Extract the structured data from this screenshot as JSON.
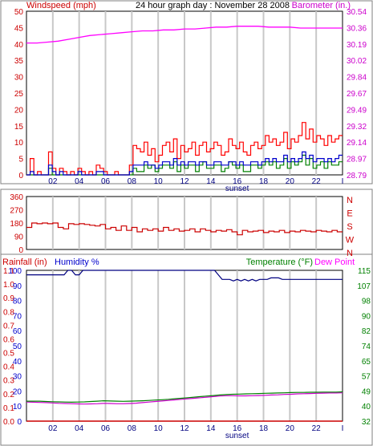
{
  "chart_data": [
    {
      "type": "line",
      "title": "24 hour graph day : November 28 2008",
      "ylabel_left": "Windspeed (mph)",
      "ylabel_right": "Barometer (in.)",
      "ylim_left": [
        0,
        50
      ],
      "ylim_right": [
        28.79,
        30.54
      ],
      "left_ticks": [
        "0",
        "5",
        "10",
        "15",
        "20",
        "25",
        "30",
        "35",
        "40",
        "45",
        "50"
      ],
      "right_ticks": [
        "28.79",
        "28.97",
        "29.14",
        "29.32",
        "29.49",
        "29.67",
        "29.84",
        "30.02",
        "30.19",
        "30.36",
        "30.54"
      ],
      "x_ticks": [
        "02",
        "04",
        "06",
        "08",
        "10",
        "12",
        "14",
        "16",
        "18",
        "20",
        "22",
        "I"
      ],
      "x_note": "sunset",
      "x_note_at": "16",
      "colors": {
        "gust": "#ff0000",
        "avg": "#0000cc",
        "wind": "#008000",
        "baro": "#ff00ff"
      },
      "gust_mph": [
        0,
        5,
        0,
        1,
        0,
        0,
        7,
        2,
        0,
        2,
        1,
        0,
        1,
        0,
        2,
        1,
        0,
        1,
        0,
        3,
        2,
        1,
        0,
        0,
        1,
        0,
        0,
        0,
        3,
        9,
        8,
        7,
        10,
        6,
        8,
        4,
        6,
        9,
        10,
        7,
        11,
        5,
        9,
        7,
        8,
        10,
        6,
        9,
        10,
        7,
        8,
        10,
        9,
        6,
        7,
        11,
        9,
        8,
        10,
        7,
        6,
        9,
        10,
        8,
        9,
        12,
        10,
        11,
        9,
        10,
        13,
        8,
        11,
        10,
        12,
        16,
        11,
        14,
        10,
        12,
        11,
        9,
        12,
        10,
        11,
        12
      ],
      "avg_mph": [
        0,
        1,
        0,
        0,
        0,
        0,
        3,
        1,
        0,
        1,
        0,
        0,
        0,
        0,
        1,
        0,
        0,
        0,
        0,
        1,
        1,
        0,
        0,
        0,
        0,
        0,
        0,
        0,
        1,
        3,
        3,
        3,
        4,
        3,
        3,
        2,
        3,
        4,
        4,
        3,
        5,
        3,
        4,
        3,
        4,
        4,
        3,
        4,
        4,
        3,
        3,
        4,
        4,
        3,
        3,
        4,
        4,
        3,
        4,
        3,
        3,
        4,
        4,
        3,
        4,
        5,
        4,
        5,
        4,
        4,
        6,
        4,
        5,
        4,
        5,
        7,
        5,
        6,
        4,
        5,
        5,
        4,
        5,
        4,
        5,
        6
      ],
      "wind_mph": [
        0,
        0,
        0,
        0,
        0,
        0,
        2,
        0,
        0,
        0,
        0,
        0,
        0,
        0,
        0,
        0,
        0,
        0,
        0,
        0,
        0,
        0,
        0,
        0,
        0,
        0,
        0,
        0,
        0,
        2,
        1,
        1,
        3,
        2,
        3,
        1,
        2,
        3,
        3,
        2,
        4,
        1,
        3,
        2,
        3,
        3,
        1,
        3,
        4,
        2,
        2,
        3,
        3,
        1,
        2,
        4,
        3,
        2,
        3,
        1,
        1,
        3,
        3,
        2,
        3,
        4,
        3,
        4,
        2,
        3,
        5,
        2,
        4,
        3,
        4,
        6,
        3,
        5,
        2,
        3,
        4,
        2,
        4,
        3,
        3,
        4
      ],
      "baro_in": [
        30.2,
        30.2,
        30.21,
        30.22,
        30.24,
        30.26,
        30.28,
        30.29,
        30.3,
        30.31,
        30.32,
        30.33,
        30.33,
        30.34,
        30.34,
        30.35,
        30.35,
        30.36,
        30.37,
        30.37,
        30.38,
        30.38,
        30.38,
        30.37,
        30.37,
        30.37,
        30.36,
        30.36,
        30.36,
        30.36,
        30.36
      ]
    },
    {
      "type": "line",
      "ylabel_right": "N W S E N",
      "ylim": [
        0,
        360
      ],
      "left_ticks": [
        "0",
        "90",
        "180",
        "270",
        "360"
      ],
      "right_labels": [
        "N",
        "W",
        "S",
        "E",
        "N"
      ],
      "colors": {
        "dir": "#cc0000"
      },
      "dir_deg": [
        150,
        180,
        175,
        180,
        175,
        180,
        150,
        140,
        175,
        170,
        175,
        170,
        165,
        160,
        170,
        140,
        150,
        130,
        160,
        130,
        150,
        120,
        140,
        130,
        140,
        125,
        150,
        130,
        140,
        125,
        130,
        140,
        120,
        140,
        130,
        120,
        130,
        125,
        135,
        120,
        100,
        130,
        120,
        125,
        130,
        115,
        125,
        120,
        130,
        115,
        125,
        120,
        130,
        125,
        120,
        130,
        125,
        120,
        130,
        120
      ]
    },
    {
      "type": "line",
      "ylabel_left": "Rainfall (in)",
      "ylabel_left2": "Humidity %",
      "ylabel_right": "Temperature (°F)",
      "ylabel_right2": "Dew Point",
      "ylim_rain": [
        0,
        1.1
      ],
      "ylim_humidity": [
        0,
        100
      ],
      "ylim_temp": [
        32,
        115
      ],
      "rain_ticks": [
        "0.0",
        "0.1",
        "0.2",
        "0.3",
        "0.4",
        "0.5",
        "0.6",
        "0.7",
        "0.8",
        "0.9",
        "1.0",
        "1.1"
      ],
      "humidity_ticks": [
        "0",
        "10",
        "20",
        "30",
        "40",
        "50",
        "60",
        "70",
        "80",
        "90",
        "100"
      ],
      "temp_ticks": [
        "32",
        "40",
        "49",
        "57",
        "65",
        "74",
        "82",
        "90",
        "98",
        "107",
        "115"
      ],
      "x_ticks": [
        "02",
        "04",
        "06",
        "08",
        "10",
        "12",
        "14",
        "16",
        "18",
        "20",
        "22",
        "I"
      ],
      "x_note": "sunset",
      "x_note_at": "16",
      "colors": {
        "rain": "#cc0000",
        "humidity": "#000080",
        "temp": "#008000",
        "dew": "#cc00cc",
        "rain_label": "#cc0000",
        "humidity_label": "#0000cc",
        "temp_label": "#008000",
        "dew_label": "#ff00ff"
      },
      "humidity_pct": [
        97,
        97,
        97,
        97,
        97,
        97,
        97,
        97,
        97,
        97,
        97,
        100,
        100,
        97,
        97,
        100,
        100,
        100,
        100,
        100,
        100,
        100,
        100,
        100,
        100,
        100,
        100,
        100,
        100,
        100,
        100,
        100,
        100,
        100,
        100,
        100,
        100,
        100,
        100,
        100,
        100,
        100,
        100,
        100,
        100,
        100,
        100,
        100,
        100,
        100,
        100,
        97,
        94,
        94,
        94,
        93,
        94,
        93,
        94,
        93,
        94,
        93,
        94,
        94,
        94,
        95,
        95,
        95,
        94,
        94,
        94,
        94,
        94,
        94,
        94,
        94,
        94,
        94,
        94,
        94,
        94,
        94,
        94,
        94,
        94
      ],
      "temp_f": [
        43,
        43,
        43,
        42.8,
        42.7,
        42.6,
        42.5,
        42.4,
        42.5,
        42.6,
        42.8,
        43,
        43.2,
        43.1,
        43,
        42.9,
        43,
        43.1,
        43.2,
        43.4,
        43.6,
        43.8,
        44,
        44.3,
        44.6,
        44.9,
        45.2,
        45.5,
        45.8,
        46.1,
        46.4,
        46.6,
        46.8,
        46.9,
        47,
        47.1,
        47.2,
        47.3,
        47.4,
        47.5,
        47.6,
        47.7,
        47.8,
        47.8,
        47.9,
        47.9,
        48,
        48,
        48,
        48.1
      ],
      "dew_f": [
        42.5,
        42.4,
        42.3,
        42.2,
        42,
        41.8,
        41.7,
        41.6,
        41.5,
        41.4,
        41.5,
        41.6,
        41.8,
        41.7,
        41.6,
        41.6,
        41.7,
        41.9,
        42.2,
        42.5,
        42.8,
        43.1,
        43.4,
        43.7,
        44,
        44.3,
        44.6,
        44.9,
        45.2,
        45.5,
        45.8,
        46,
        46,
        45.9,
        45.9,
        46,
        46.1,
        46.2,
        46.4,
        46.5,
        46.7,
        46.8,
        47,
        47.1,
        47.2,
        47.3,
        47.4,
        47.5,
        47.5,
        47.6
      ],
      "rain_in": [
        0,
        0,
        0,
        0,
        0,
        0,
        0,
        0,
        0,
        0,
        0,
        0,
        0,
        0,
        0,
        0,
        0,
        0,
        0,
        0
      ]
    }
  ]
}
